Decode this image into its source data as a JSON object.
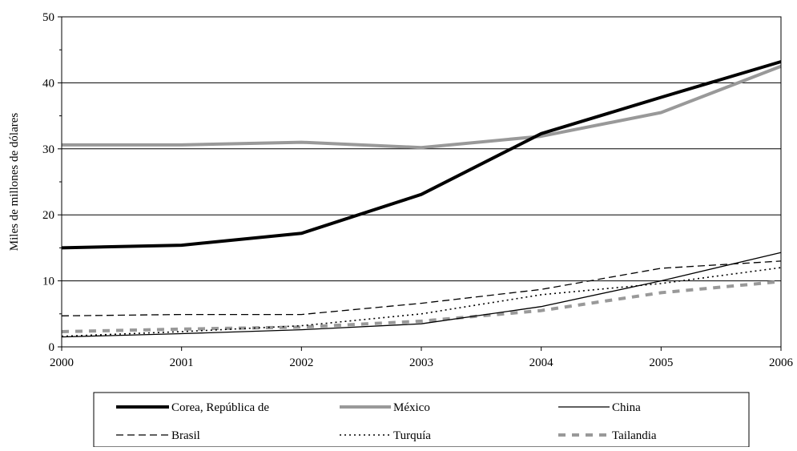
{
  "chart_data": {
    "type": "line",
    "title": "",
    "xlabel": "",
    "ylabel": "Miles de millones de dólares",
    "x": [
      2000,
      2001,
      2002,
      2003,
      2004,
      2005,
      2006
    ],
    "x_tick_labels": [
      "2000",
      "2001",
      "2002",
      "2003",
      "2004",
      "2005",
      "2006"
    ],
    "ylim": [
      0,
      50
    ],
    "y_tick_labels": [
      "0",
      "10",
      "20",
      "30",
      "40",
      "50"
    ],
    "y_ticks": [
      0,
      10,
      20,
      30,
      40,
      50
    ],
    "grid": "horizontal",
    "legend_position": "bottom",
    "series": [
      {
        "name": "Corea, República de",
        "values": [
          15.0,
          15.4,
          17.2,
          23.1,
          32.3,
          37.8,
          43.2
        ],
        "color": "#000000",
        "style": "solid-thick"
      },
      {
        "name": "México",
        "values": [
          30.6,
          30.6,
          31.0,
          30.2,
          31.9,
          35.5,
          42.5
        ],
        "color": "#999999",
        "style": "solid-thick"
      },
      {
        "name": "China",
        "values": [
          1.5,
          2.0,
          2.6,
          3.5,
          6.1,
          10.0,
          14.3
        ],
        "color": "#000000",
        "style": "solid-thin"
      },
      {
        "name": "Brasil",
        "values": [
          4.7,
          4.9,
          4.9,
          6.6,
          8.7,
          11.9,
          13.0
        ],
        "color": "#000000",
        "style": "dashed"
      },
      {
        "name": "Turquía",
        "values": [
          1.6,
          2.3,
          3.2,
          5.0,
          7.9,
          9.6,
          12.0
        ],
        "color": "#000000",
        "style": "dotted"
      },
      {
        "name": "Tailandia",
        "values": [
          2.3,
          2.7,
          3.0,
          3.9,
          5.5,
          8.2,
          9.9
        ],
        "color": "#999999",
        "style": "dashed-thick"
      }
    ]
  }
}
